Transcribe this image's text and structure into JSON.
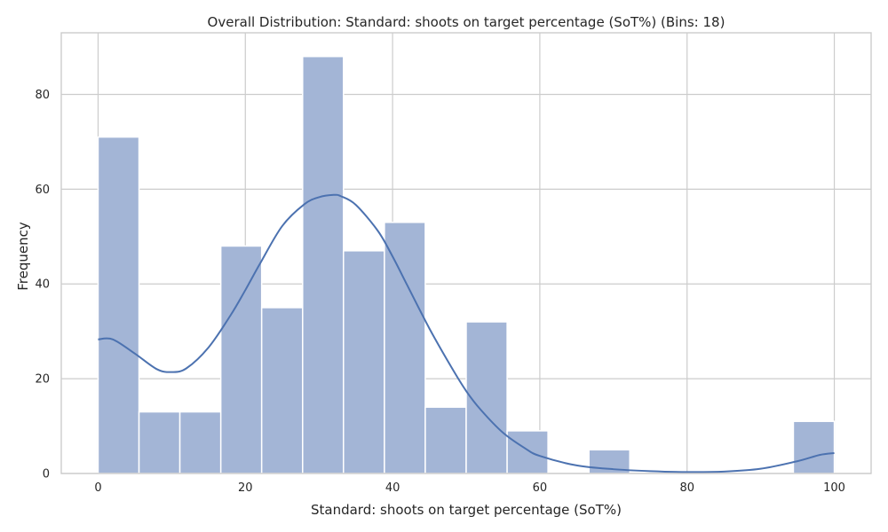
{
  "chart_data": {
    "type": "bar",
    "title": "Overall Distribution: Standard: shoots on target percentage (SoT%) (Bins: 18)",
    "xlabel": "Standard: shoots on target percentage (SoT%)",
    "ylabel": "Frequency",
    "xlim": [
      -5,
      105
    ],
    "ylim": [
      0,
      93
    ],
    "xticks": [
      0,
      20,
      40,
      60,
      80,
      100
    ],
    "yticks": [
      0,
      20,
      40,
      60,
      80
    ],
    "grid": true,
    "bins": [
      {
        "start": 0.0,
        "end": 5.56,
        "count": 71
      },
      {
        "start": 5.56,
        "end": 11.11,
        "count": 13
      },
      {
        "start": 11.11,
        "end": 16.67,
        "count": 13
      },
      {
        "start": 16.67,
        "end": 22.22,
        "count": 48
      },
      {
        "start": 22.22,
        "end": 27.78,
        "count": 35
      },
      {
        "start": 27.78,
        "end": 33.33,
        "count": 88
      },
      {
        "start": 33.33,
        "end": 38.89,
        "count": 47
      },
      {
        "start": 38.89,
        "end": 44.44,
        "count": 53
      },
      {
        "start": 44.44,
        "end": 50.0,
        "count": 14
      },
      {
        "start": 50.0,
        "end": 55.56,
        "count": 32
      },
      {
        "start": 55.56,
        "end": 61.11,
        "count": 9
      },
      {
        "start": 61.11,
        "end": 66.67,
        "count": 0
      },
      {
        "start": 66.67,
        "end": 72.22,
        "count": 5
      },
      {
        "start": 72.22,
        "end": 77.78,
        "count": 0
      },
      {
        "start": 77.78,
        "end": 83.33,
        "count": 0
      },
      {
        "start": 83.33,
        "end": 88.89,
        "count": 0
      },
      {
        "start": 88.89,
        "end": 94.44,
        "count": 0
      },
      {
        "start": 94.44,
        "end": 100.0,
        "count": 11
      }
    ],
    "kde": {
      "x": [
        0,
        2,
        5,
        8,
        10,
        12,
        15,
        18,
        20,
        22,
        25,
        28,
        30,
        32,
        33,
        35,
        38,
        40,
        42,
        45,
        48,
        50,
        52,
        55,
        58,
        60,
        65,
        70,
        75,
        80,
        85,
        90,
        95,
        98,
        100
      ],
      "y": [
        28.3,
        28.3,
        25.3,
        22.0,
        21.4,
        22.2,
        26.6,
        33.4,
        38.7,
        44.3,
        52.2,
        56.8,
        58.3,
        58.8,
        58.5,
        56.7,
        51.2,
        45.8,
        39.7,
        30.6,
        22.4,
        17.4,
        13.4,
        8.6,
        5.3,
        3.7,
        1.7,
        0.9,
        0.5,
        0.3,
        0.4,
        1.0,
        2.6,
        3.9,
        4.3
      ]
    },
    "colors": {
      "bar_fill": "#a3b5d6",
      "bar_stroke": "#ffffff",
      "kde_line": "#4c72b0",
      "grid": "#cccccc",
      "frame": "#cccccc",
      "text": "#262626"
    }
  }
}
